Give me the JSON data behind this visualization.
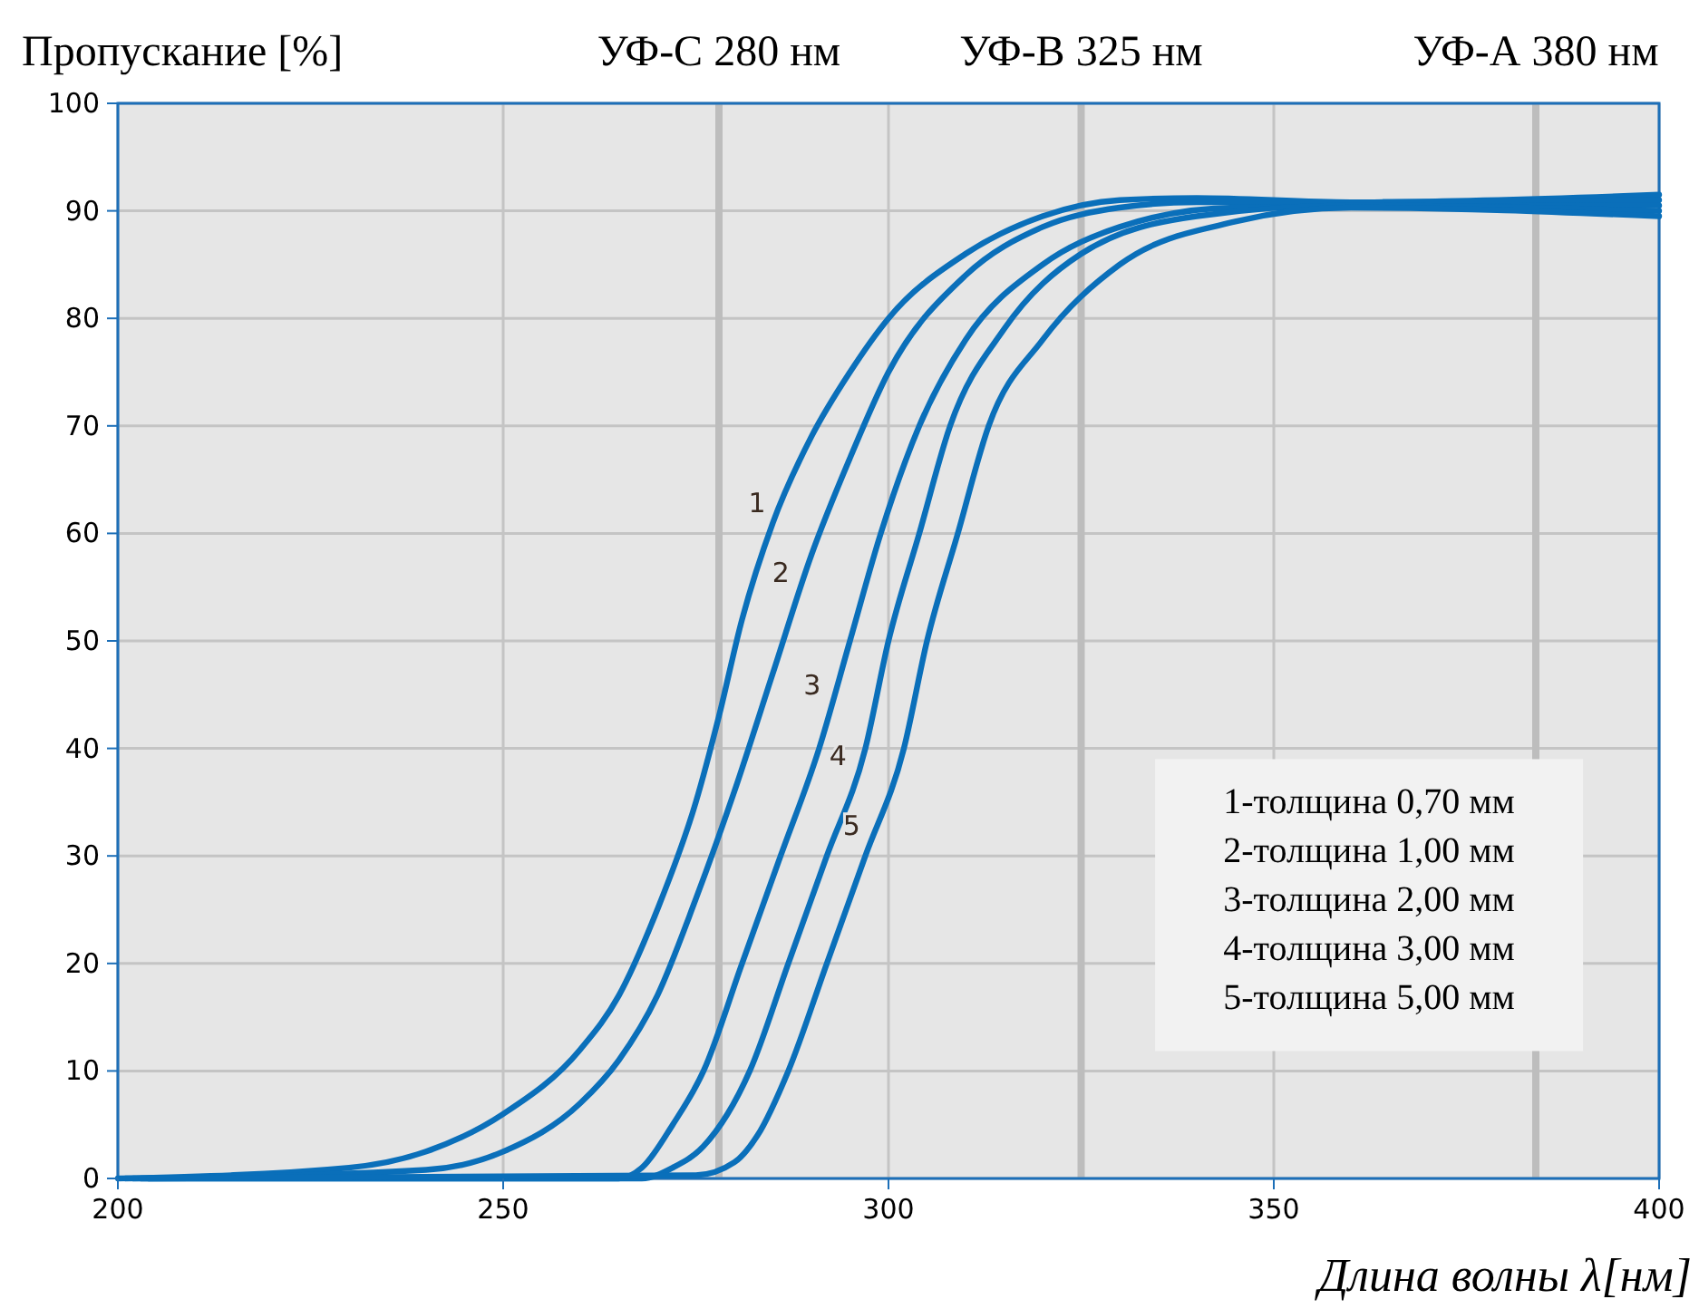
{
  "chart_data": {
    "type": "line",
    "ylabel": "Пропускание [%]",
    "xlabel": "Длина волны λ[нм]",
    "xlim": [
      200,
      400
    ],
    "xticks": [
      200,
      250,
      300,
      350,
      400
    ],
    "ylim": [
      0,
      100
    ],
    "yticks": [
      0,
      10,
      20,
      30,
      40,
      50,
      60,
      70,
      80,
      90,
      100
    ],
    "grid": true,
    "marker": "none",
    "line_style": "solid",
    "series": [
      {
        "name": "1",
        "color": "#0a6fba",
        "x": [
          200,
          230,
          240,
          250,
          260,
          265,
          270,
          275,
          278,
          281,
          285,
          290,
          295,
          300,
          310,
          320,
          330,
          340,
          360,
          400
        ],
        "values": [
          0,
          1,
          2.5,
          6,
          12,
          17,
          25,
          35,
          43,
          52,
          61,
          69,
          75,
          80,
          86,
          89.5,
          91,
          91.2,
          90.8,
          91.5
        ]
      },
      {
        "name": "2",
        "color": "#0a6fba",
        "x": [
          201,
          240,
          250,
          260,
          265,
          270,
          275,
          280,
          285,
          290,
          295,
          300,
          310,
          320,
          330,
          340,
          360,
          400
        ],
        "values": [
          0,
          0.8,
          2.5,
          7,
          11,
          17,
          26,
          36,
          47,
          58,
          67,
          75,
          84,
          88.5,
          90.3,
          90.8,
          90.8,
          91
        ]
      },
      {
        "name": "3",
        "color": "#0a6fba",
        "x": [
          202,
          265,
          268,
          272,
          276,
          281,
          286,
          291,
          295,
          299,
          304,
          310,
          320,
          330,
          345,
          400
        ],
        "values": [
          0,
          0,
          1,
          5,
          10,
          20,
          30,
          40,
          50,
          60,
          70,
          78,
          85,
          88.5,
          90.3,
          90.5
        ]
      },
      {
        "name": "4",
        "color": "#0a6fba",
        "x": [
          203,
          268,
          272,
          276,
          282,
          287,
          292,
          297,
          300,
          304,
          308,
          315,
          325,
          340,
          360,
          400
        ],
        "values": [
          0,
          0,
          1,
          3,
          10,
          20,
          30,
          40,
          50,
          60,
          70,
          79,
          86,
          89.5,
          90.5,
          90
        ]
      },
      {
        "name": "5",
        "color": "#0a6fba",
        "x": [
          204,
          275,
          280,
          283,
          287,
          292,
          297,
          302,
          305,
          309,
          313,
          320,
          330,
          345,
          360,
          400
        ],
        "values": [
          0,
          0.3,
          1.5,
          4,
          10,
          20,
          30,
          40,
          50,
          60,
          70,
          78,
          85,
          89,
          90.3,
          89.5
        ]
      }
    ],
    "ref_lines": [
      {
        "axis": "x",
        "value": 278,
        "label": "УФ-С  280 нм",
        "color": "#bdbdbd"
      },
      {
        "axis": "x",
        "value": 325,
        "label": "УФ-В  325 нм",
        "color": "#bdbdbd"
      },
      {
        "axis": "x",
        "value": 384,
        "label": "УФ-А  380 нм",
        "color": "#bdbdbd"
      }
    ],
    "annotations": [
      "1-толщина 0,70 мм",
      "2-толщина 1,00 мм",
      "3-толщина 2,00 мм",
      "4-толщина 3,00 мм",
      "5-толщина 5,00 мм"
    ]
  }
}
